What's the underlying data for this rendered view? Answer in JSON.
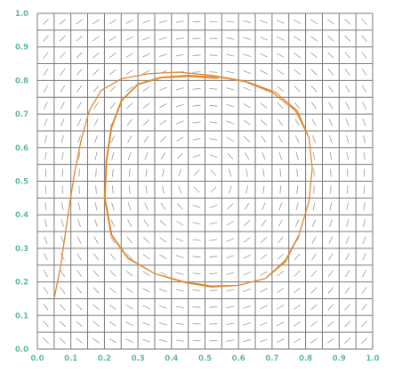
{
  "chart_data": {
    "type": "line",
    "title": "",
    "xlabel": "",
    "ylabel": "",
    "xlim": [
      0,
      1
    ],
    "ylim": [
      0,
      1
    ],
    "grid": true,
    "grid_step": 0.05,
    "x_ticks": [
      "0.0",
      "0.1",
      "0.2",
      "0.3",
      "0.4",
      "0.5",
      "0.6",
      "0.7",
      "0.8",
      "0.9",
      "1.0"
    ],
    "y_ticks": [
      "0.0",
      "0.1",
      "0.2",
      "0.3",
      "0.4",
      "0.5",
      "0.6",
      "0.7",
      "0.8",
      "0.9",
      "1.0"
    ],
    "direction_field": {
      "center": [
        0.5,
        0.5
      ],
      "rotation": "counterclockwise",
      "grid": 20
    },
    "series": [
      {
        "color": "#e0892f",
        "points": [
          [
            0.05,
            0.15
          ],
          [
            0.07,
            0.25
          ],
          [
            0.09,
            0.39
          ],
          [
            0.11,
            0.52
          ],
          [
            0.13,
            0.62
          ],
          [
            0.155,
            0.71
          ],
          [
            0.19,
            0.77
          ],
          [
            0.25,
            0.805
          ],
          [
            0.33,
            0.82
          ],
          [
            0.42,
            0.825
          ],
          [
            0.52,
            0.815
          ],
          [
            0.61,
            0.8
          ],
          [
            0.7,
            0.765
          ],
          [
            0.77,
            0.71
          ],
          [
            0.81,
            0.63
          ],
          [
            0.82,
            0.54
          ],
          [
            0.81,
            0.44
          ],
          [
            0.78,
            0.34
          ],
          [
            0.74,
            0.265
          ],
          [
            0.68,
            0.21
          ],
          [
            0.6,
            0.19
          ],
          [
            0.52,
            0.188
          ],
          [
            0.44,
            0.2
          ],
          [
            0.35,
            0.225
          ],
          [
            0.27,
            0.27
          ],
          [
            0.22,
            0.34
          ],
          [
            0.2,
            0.45
          ],
          [
            0.205,
            0.56
          ],
          [
            0.22,
            0.66
          ],
          [
            0.25,
            0.74
          ],
          [
            0.3,
            0.79
          ],
          [
            0.37,
            0.81
          ],
          [
            0.45,
            0.815
          ],
          [
            0.54,
            0.81
          ],
          [
            0.63,
            0.795
          ],
          [
            0.71,
            0.765
          ],
          [
            0.775,
            0.71
          ],
          [
            0.81,
            0.63
          ],
          [
            0.82,
            0.54
          ],
          [
            0.81,
            0.44
          ],
          [
            0.78,
            0.34
          ],
          [
            0.74,
            0.26
          ],
          [
            0.68,
            0.21
          ],
          [
            0.6,
            0.19
          ],
          [
            0.52,
            0.185
          ],
          [
            0.44,
            0.198
          ],
          [
            0.35,
            0.225
          ],
          [
            0.27,
            0.272
          ],
          [
            0.222,
            0.34
          ],
          [
            0.202,
            0.45
          ],
          [
            0.207,
            0.56
          ],
          [
            0.222,
            0.66
          ],
          [
            0.252,
            0.74
          ],
          [
            0.3,
            0.788
          ],
          [
            0.37,
            0.808
          ],
          [
            0.45,
            0.812
          ],
          [
            0.54,
            0.806
          ]
        ]
      }
    ]
  }
}
